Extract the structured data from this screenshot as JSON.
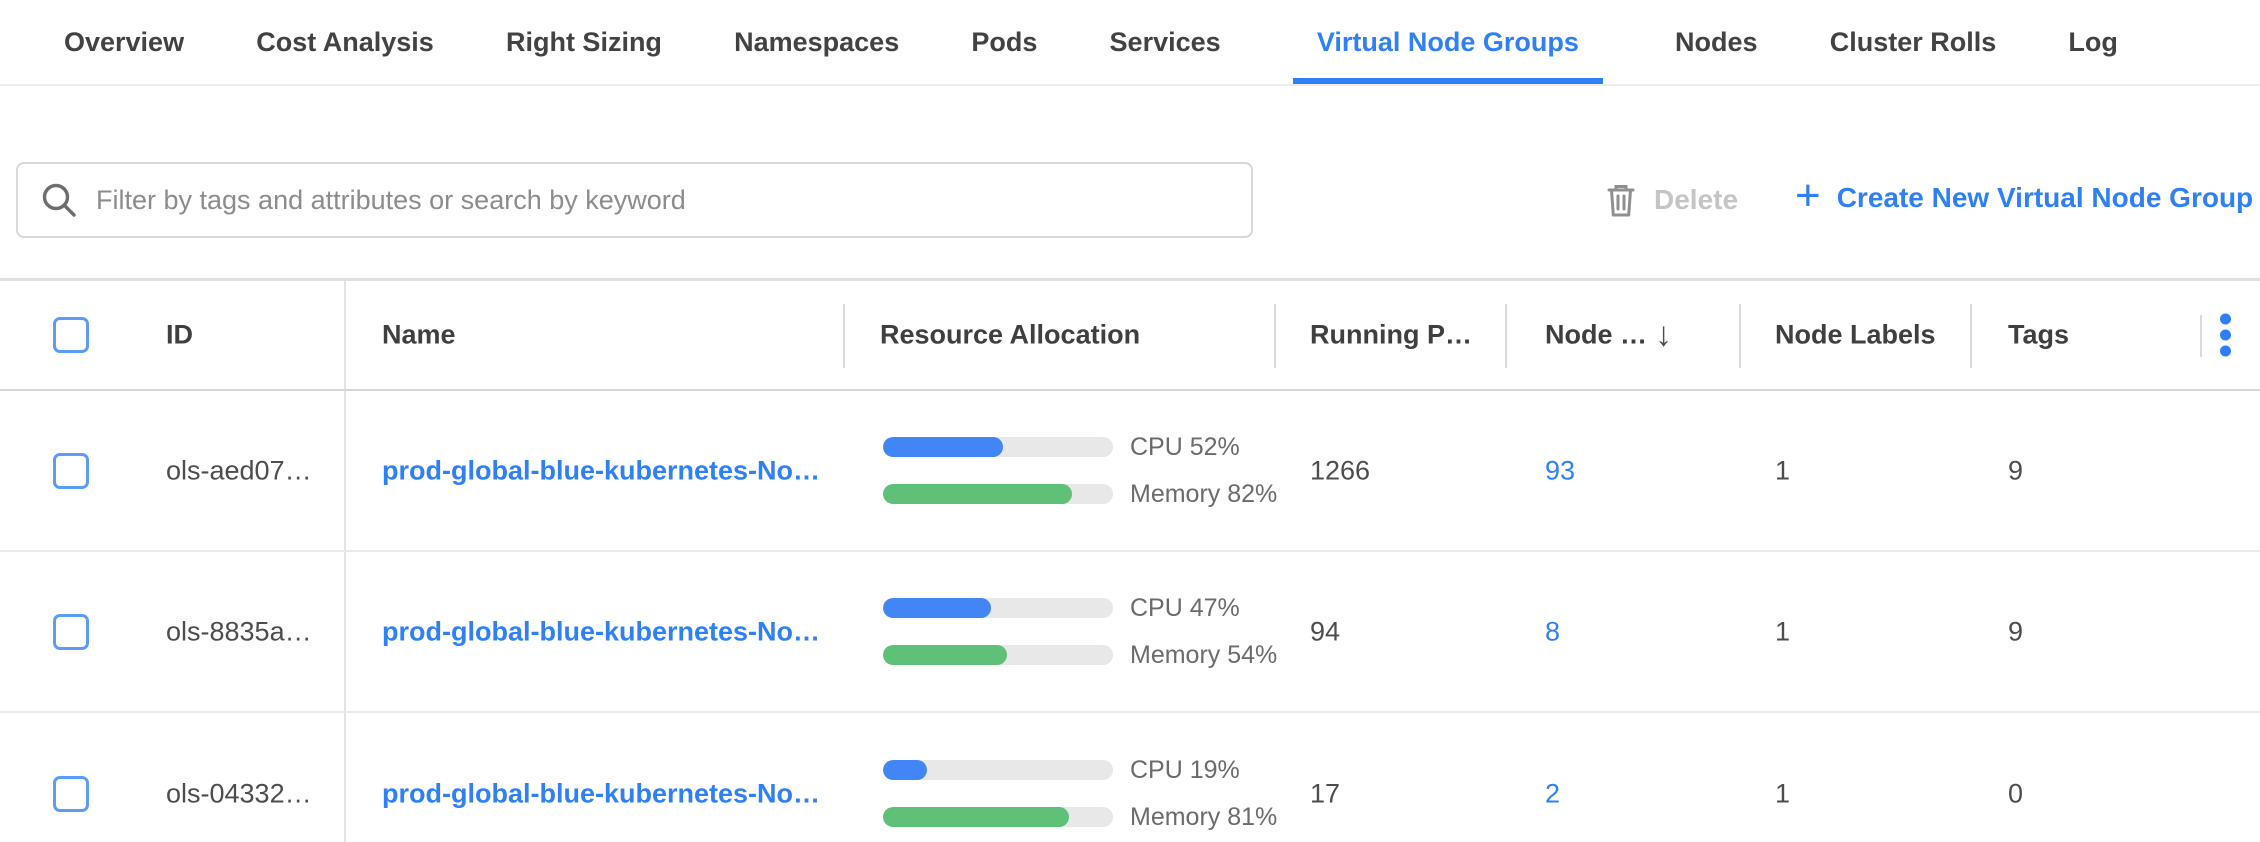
{
  "colors": {
    "accent": "#2f80f7",
    "bar_blue": "#4285f4",
    "bar_green": "#5fc077"
  },
  "tabs": {
    "items": [
      {
        "label": "Overview",
        "active": false
      },
      {
        "label": "Cost Analysis",
        "active": false
      },
      {
        "label": "Right Sizing",
        "active": false
      },
      {
        "label": "Namespaces",
        "active": false
      },
      {
        "label": "Pods",
        "active": false
      },
      {
        "label": "Services",
        "active": false
      },
      {
        "label": "Virtual Node Groups",
        "active": true
      },
      {
        "label": "Nodes",
        "active": false
      },
      {
        "label": "Cluster Rolls",
        "active": false
      },
      {
        "label": "Log",
        "active": false
      }
    ]
  },
  "toolbar": {
    "search_placeholder": "Filter by tags and attributes or search by keyword",
    "delete_label": "Delete",
    "create_label": "Create New Virtual Node Group",
    "plus_glyph": "+"
  },
  "table": {
    "columns": {
      "id": "ID",
      "name": "Name",
      "resource_allocation": "Resource Allocation",
      "running_pods": "Running P…",
      "node_count": "Node …",
      "node_labels": "Node Labels",
      "tags": "Tags"
    },
    "sort": {
      "column": "node_count",
      "direction": "descending"
    },
    "icons": {
      "sort_desc": "↓"
    },
    "rows": [
      {
        "id": "ols-aed07…",
        "name": "prod-global-blue-kubernetes-No…",
        "cpu_pct": 52,
        "memory_pct": 82,
        "cpu_label": "CPU 52%",
        "memory_label": "Memory 82%",
        "running_pods": "1266",
        "node_count": "93",
        "node_labels": "1",
        "tags": "9"
      },
      {
        "id": "ols-8835a…",
        "name": "prod-global-blue-kubernetes-No…",
        "cpu_pct": 47,
        "memory_pct": 54,
        "cpu_label": "CPU 47%",
        "memory_label": "Memory 54%",
        "running_pods": "94",
        "node_count": "8",
        "node_labels": "1",
        "tags": "9"
      },
      {
        "id": "ols-04332…",
        "name": "prod-global-blue-kubernetes-No…",
        "cpu_pct": 19,
        "memory_pct": 81,
        "cpu_label": "CPU 19%",
        "memory_label": "Memory 81%",
        "running_pods": "17",
        "node_count": "2",
        "node_labels": "1",
        "tags": "0"
      }
    ]
  }
}
